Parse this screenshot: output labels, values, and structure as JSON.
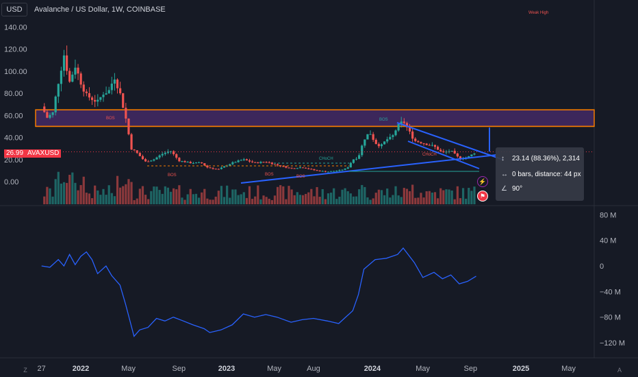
{
  "header": {
    "currency": "USD",
    "title": "Avalanche / US Dollar, 1W, COINBASE"
  },
  "price_tag": {
    "price": "26.99",
    "ticker": "AVAXUSD"
  },
  "measure": {
    "row1": "23.14 (88.36%), 2,314",
    "row2": "0 bars, distance: 44 px",
    "row3": "90°"
  },
  "annotations": {
    "weak_high": "Weak High",
    "bos": "BOS",
    "choch": "CHoCH"
  },
  "bottom_buttons": {
    "left": "Z",
    "right": "A"
  },
  "colors": {
    "background": "#161a25",
    "up": "#26a69a",
    "down": "#ef5350",
    "zone_fill": "#4a2c6e",
    "zone_border": "#f57c00",
    "trendline": "#2962ff",
    "price_label": "#f23645",
    "indicator_line": "#2962ff"
  },
  "chart_data": [
    {
      "type": "candlestick",
      "title": "Avalanche / US Dollar, 1W, COINBASE",
      "x_ticks": [
        "27",
        "2022",
        "May",
        "Sep",
        "2023",
        "May",
        "Aug",
        "2024",
        "May",
        "Sep",
        "2025",
        "May"
      ],
      "y_ticks": [
        "140.00",
        "120.00",
        "100.00",
        "80.00",
        "60.00",
        "40.00",
        "20.00",
        "0.00"
      ],
      "ylim": [
        -14,
        150
      ],
      "last_price": 26.99,
      "close_series": [
        {
          "x": "2021-09-27",
          "y": 68
        },
        {
          "x": "2021-10-11",
          "y": 58
        },
        {
          "x": "2021-10-25",
          "y": 62
        },
        {
          "x": "2021-11-08",
          "y": 90
        },
        {
          "x": "2021-11-22",
          "y": 115
        },
        {
          "x": "2021-12-06",
          "y": 90
        },
        {
          "x": "2021-12-20",
          "y": 105
        },
        {
          "x": "2022-01-03",
          "y": 90
        },
        {
          "x": "2022-01-17",
          "y": 78
        },
        {
          "x": "2022-01-31",
          "y": 75
        },
        {
          "x": "2022-02-14",
          "y": 72
        },
        {
          "x": "2022-02-28",
          "y": 80
        },
        {
          "x": "2022-03-14",
          "y": 82
        },
        {
          "x": "2022-03-28",
          "y": 95
        },
        {
          "x": "2022-04-11",
          "y": 80
        },
        {
          "x": "2022-04-25",
          "y": 58
        },
        {
          "x": "2022-05-09",
          "y": 30
        },
        {
          "x": "2022-05-23",
          "y": 26
        },
        {
          "x": "2022-06-13",
          "y": 18
        },
        {
          "x": "2022-07-04",
          "y": 20
        },
        {
          "x": "2022-07-25",
          "y": 25
        },
        {
          "x": "2022-08-15",
          "y": 28
        },
        {
          "x": "2022-09-05",
          "y": 19
        },
        {
          "x": "2022-10-03",
          "y": 17
        },
        {
          "x": "2022-10-31",
          "y": 17
        },
        {
          "x": "2022-11-14",
          "y": 13
        },
        {
          "x": "2022-12-12",
          "y": 11
        },
        {
          "x": "2023-01-16",
          "y": 17
        },
        {
          "x": "2023-02-13",
          "y": 20
        },
        {
          "x": "2023-03-13",
          "y": 17
        },
        {
          "x": "2023-04-10",
          "y": 18
        },
        {
          "x": "2023-05-08",
          "y": 15
        },
        {
          "x": "2023-06-12",
          "y": 12
        },
        {
          "x": "2023-07-10",
          "y": 13
        },
        {
          "x": "2023-08-14",
          "y": 10
        },
        {
          "x": "2023-09-11",
          "y": 9
        },
        {
          "x": "2023-10-09",
          "y": 10
        },
        {
          "x": "2023-10-30",
          "y": 12
        },
        {
          "x": "2023-11-13",
          "y": 20
        },
        {
          "x": "2023-11-27",
          "y": 22
        },
        {
          "x": "2023-12-11",
          "y": 38
        },
        {
          "x": "2023-12-25",
          "y": 45
        },
        {
          "x": "2024-01-08",
          "y": 35
        },
        {
          "x": "2024-01-22",
          "y": 32
        },
        {
          "x": "2024-02-05",
          "y": 38
        },
        {
          "x": "2024-02-19",
          "y": 40
        },
        {
          "x": "2024-03-04",
          "y": 50
        },
        {
          "x": "2024-03-18",
          "y": 55
        },
        {
          "x": "2024-04-01",
          "y": 46
        },
        {
          "x": "2024-04-15",
          "y": 37
        },
        {
          "x": "2024-05-06",
          "y": 35
        },
        {
          "x": "2024-06-03",
          "y": 32
        },
        {
          "x": "2024-06-24",
          "y": 26
        },
        {
          "x": "2024-07-15",
          "y": 28
        },
        {
          "x": "2024-08-05",
          "y": 21
        },
        {
          "x": "2024-08-26",
          "y": 22
        },
        {
          "x": "2024-09-16",
          "y": 26.99
        }
      ]
    },
    {
      "type": "line",
      "title": "",
      "y_ticks": [
        "80 M",
        "40 M",
        "0",
        "−40 M",
        "−80 M",
        "−120 M"
      ],
      "ylim": [
        -120,
        80
      ],
      "unit": "M",
      "series": [
        {
          "x": "2021-09-27",
          "y": 0
        },
        {
          "x": "2021-10-18",
          "y": -2
        },
        {
          "x": "2021-11-08",
          "y": 10
        },
        {
          "x": "2021-11-22",
          "y": 0
        },
        {
          "x": "2021-12-06",
          "y": 18
        },
        {
          "x": "2021-12-20",
          "y": 2
        },
        {
          "x": "2022-01-03",
          "y": 15
        },
        {
          "x": "2022-01-17",
          "y": 22
        },
        {
          "x": "2022-01-31",
          "y": 10
        },
        {
          "x": "2022-02-14",
          "y": -12
        },
        {
          "x": "2022-03-07",
          "y": 0
        },
        {
          "x": "2022-03-21",
          "y": -15
        },
        {
          "x": "2022-04-11",
          "y": -30
        },
        {
          "x": "2022-04-25",
          "y": -60
        },
        {
          "x": "2022-05-16",
          "y": -110
        },
        {
          "x": "2022-05-30",
          "y": -100
        },
        {
          "x": "2022-06-20",
          "y": -96
        },
        {
          "x": "2022-07-11",
          "y": -82
        },
        {
          "x": "2022-08-01",
          "y": -86
        },
        {
          "x": "2022-08-22",
          "y": -80
        },
        {
          "x": "2022-09-12",
          "y": -85
        },
        {
          "x": "2022-10-10",
          "y": -92
        },
        {
          "x": "2022-11-07",
          "y": -98
        },
        {
          "x": "2022-11-21",
          "y": -104
        },
        {
          "x": "2022-12-19",
          "y": -100
        },
        {
          "x": "2023-01-16",
          "y": -92
        },
        {
          "x": "2023-02-13",
          "y": -75
        },
        {
          "x": "2023-03-13",
          "y": -80
        },
        {
          "x": "2023-04-10",
          "y": -76
        },
        {
          "x": "2023-05-08",
          "y": -80
        },
        {
          "x": "2023-06-12",
          "y": -88
        },
        {
          "x": "2023-07-10",
          "y": -84
        },
        {
          "x": "2023-08-07",
          "y": -82
        },
        {
          "x": "2023-09-11",
          "y": -86
        },
        {
          "x": "2023-10-09",
          "y": -90
        },
        {
          "x": "2023-11-13",
          "y": -70
        },
        {
          "x": "2023-11-27",
          "y": -45
        },
        {
          "x": "2023-12-11",
          "y": -5
        },
        {
          "x": "2024-01-08",
          "y": 10
        },
        {
          "x": "2024-02-05",
          "y": 12
        },
        {
          "x": "2024-03-04",
          "y": 18
        },
        {
          "x": "2024-03-18",
          "y": 28
        },
        {
          "x": "2024-04-15",
          "y": 5
        },
        {
          "x": "2024-05-06",
          "y": -18
        },
        {
          "x": "2024-06-03",
          "y": -10
        },
        {
          "x": "2024-06-24",
          "y": -20
        },
        {
          "x": "2024-07-15",
          "y": -14
        },
        {
          "x": "2024-08-05",
          "y": -28
        },
        {
          "x": "2024-08-26",
          "y": -24
        },
        {
          "x": "2024-09-16",
          "y": -16
        }
      ]
    }
  ]
}
